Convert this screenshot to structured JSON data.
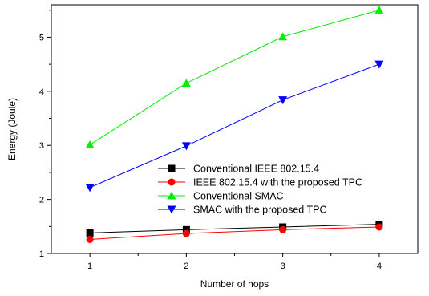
{
  "chart_data": {
    "type": "line",
    "title": "",
    "xlabel": "Number of hops",
    "ylabel": "Energy (Joule)",
    "x": [
      1,
      2,
      3,
      4
    ],
    "x_ticks": [
      "1",
      "2",
      "3",
      "4"
    ],
    "y_ticks": [
      "1",
      "2",
      "3",
      "4",
      "5"
    ],
    "xlim": [
      0.6,
      4.4
    ],
    "ylim": [
      1.0,
      5.6
    ],
    "grid": false,
    "legend_position": "center-right",
    "series": [
      {
        "name": "Conventional IEEE 802.15.4",
        "values": [
          1.38,
          1.44,
          1.49,
          1.54
        ],
        "color": "#000000",
        "marker": "square"
      },
      {
        "name": "IEEE 802.15.4 with the proposed TPC",
        "values": [
          1.26,
          1.37,
          1.44,
          1.49
        ],
        "color": "#ff0000",
        "marker": "circle"
      },
      {
        "name": "Conventional SMAC",
        "values": [
          3.01,
          4.15,
          5.01,
          5.5
        ],
        "color": "#00ee00",
        "marker": "triangle-up"
      },
      {
        "name": "SMAC with the proposed TPC",
        "values": [
          2.22,
          2.99,
          3.84,
          4.5
        ],
        "color": "#0000ff",
        "marker": "triangle-down"
      }
    ]
  }
}
